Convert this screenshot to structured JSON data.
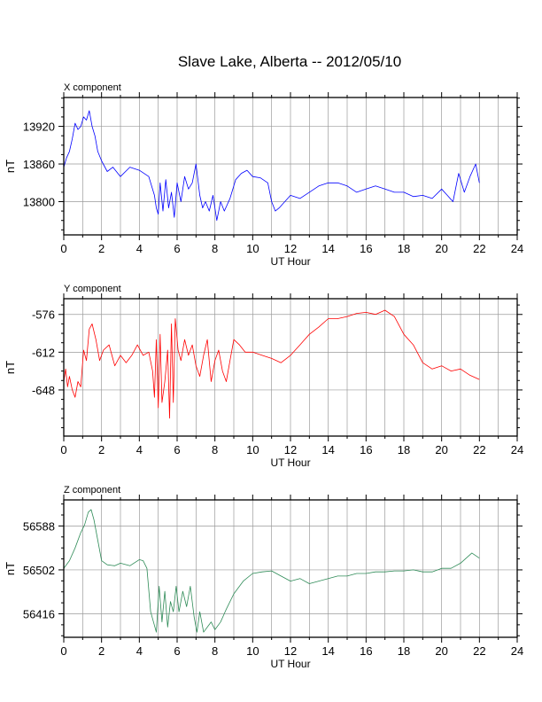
{
  "page": {
    "title": "Slave Lake, Alberta -- 2012/05/10"
  },
  "chart_data": [
    {
      "type": "line",
      "panel_title": "X component",
      "ylabel": "nT",
      "xlabel": "UT Hour",
      "xlim": [
        0,
        24
      ],
      "ylim": [
        13747,
        13966
      ],
      "x_ticks": [
        0,
        2,
        4,
        6,
        8,
        10,
        12,
        14,
        16,
        18,
        20,
        22,
        24
      ],
      "y_ticks": [
        13800,
        13860,
        13920
      ],
      "grid": true,
      "color": "#0000ff",
      "series": [
        {
          "x": [
            0,
            0.15,
            0.3,
            0.45,
            0.6,
            0.75,
            0.9,
            1.05,
            1.2,
            1.35,
            1.5,
            1.65,
            1.8,
            2.0,
            2.3,
            2.6,
            3.0,
            3.5,
            4.0,
            4.5,
            4.8,
            4.9,
            5.0,
            5.1,
            5.25,
            5.4,
            5.55,
            5.7,
            5.85,
            6.0,
            6.2,
            6.4,
            6.6,
            6.8,
            7.0,
            7.2,
            7.35,
            7.5,
            7.7,
            7.9,
            8.1,
            8.3,
            8.5,
            8.8,
            9.1,
            9.4,
            9.7,
            10.0,
            10.4,
            10.8,
            11.0,
            11.2,
            11.4,
            11.7,
            12.0,
            12.5,
            13.0,
            13.5,
            14.0,
            14.5,
            15.0,
            15.5,
            16.0,
            16.5,
            17.0,
            17.5,
            18.0,
            18.5,
            19.0,
            19.5,
            20.0,
            20.3,
            20.6,
            20.9,
            21.2,
            21.5,
            21.8,
            22.0
          ],
          "values": [
            13855,
            13870,
            13880,
            13900,
            13925,
            13915,
            13920,
            13935,
            13930,
            13945,
            13920,
            13905,
            13880,
            13865,
            13848,
            13855,
            13840,
            13855,
            13850,
            13840,
            13810,
            13790,
            13780,
            13830,
            13785,
            13835,
            13790,
            13815,
            13775,
            13830,
            13800,
            13840,
            13820,
            13830,
            13860,
            13810,
            13790,
            13800,
            13785,
            13810,
            13770,
            13800,
            13785,
            13805,
            13835,
            13845,
            13850,
            13840,
            13838,
            13830,
            13800,
            13785,
            13790,
            13800,
            13810,
            13805,
            13815,
            13825,
            13830,
            13830,
            13825,
            13815,
            13820,
            13825,
            13820,
            13815,
            13815,
            13808,
            13810,
            13805,
            13820,
            13810,
            13800,
            13845,
            13815,
            13840,
            13860,
            13830
          ]
        }
      ]
    },
    {
      "type": "line",
      "panel_title": "Y component",
      "ylabel": "nT",
      "xlabel": "UT Hour",
      "xlim": [
        0,
        24
      ],
      "ylim": [
        -692,
        -561
      ],
      "x_ticks": [
        0,
        2,
        4,
        6,
        8,
        10,
        12,
        14,
        16,
        18,
        20,
        22,
        24
      ],
      "y_ticks": [
        -648,
        -612,
        -576
      ],
      "grid": true,
      "color": "#ff0000",
      "series": [
        {
          "x": [
            0,
            0.1,
            0.2,
            0.3,
            0.45,
            0.6,
            0.75,
            0.9,
            1.05,
            1.2,
            1.35,
            1.5,
            1.7,
            1.9,
            2.1,
            2.4,
            2.7,
            3.0,
            3.3,
            3.6,
            3.9,
            4.2,
            4.5,
            4.7,
            4.8,
            4.9,
            5.0,
            5.1,
            5.2,
            5.35,
            5.5,
            5.6,
            5.7,
            5.8,
            5.9,
            6.05,
            6.2,
            6.4,
            6.6,
            6.8,
            7.0,
            7.2,
            7.4,
            7.6,
            7.8,
            8.0,
            8.2,
            8.4,
            8.6,
            8.8,
            9.0,
            9.3,
            9.6,
            10.0,
            10.5,
            11.0,
            11.5,
            12.0,
            12.5,
            13.0,
            13.5,
            14.0,
            14.5,
            15.0,
            15.5,
            16.0,
            16.5,
            17.0,
            17.5,
            18.0,
            18.5,
            19.0,
            19.5,
            20.0,
            20.5,
            21.0,
            21.5,
            22.0
          ],
          "values": [
            -640,
            -628,
            -645,
            -635,
            -648,
            -655,
            -640,
            -645,
            -610,
            -620,
            -590,
            -585,
            -600,
            -620,
            -610,
            -605,
            -625,
            -615,
            -622,
            -615,
            -605,
            -615,
            -612,
            -630,
            -655,
            -600,
            -665,
            -595,
            -660,
            -640,
            -610,
            -675,
            -585,
            -660,
            -580,
            -610,
            -620,
            -600,
            -615,
            -605,
            -625,
            -635,
            -615,
            -600,
            -640,
            -620,
            -610,
            -630,
            -640,
            -620,
            -600,
            -605,
            -612,
            -612,
            -615,
            -618,
            -622,
            -615,
            -605,
            -595,
            -588,
            -580,
            -580,
            -578,
            -575,
            -574,
            -576,
            -572,
            -578,
            -595,
            -605,
            -622,
            -628,
            -625,
            -630,
            -628,
            -634,
            -638
          ]
        }
      ]
    },
    {
      "type": "line",
      "panel_title": "Z component",
      "ylabel": "nT",
      "xlabel": "UT Hour",
      "xlim": [
        0,
        24
      ],
      "ylim": [
        56370,
        56639
      ],
      "x_ticks": [
        0,
        2,
        4,
        6,
        8,
        10,
        12,
        14,
        16,
        18,
        20,
        22,
        24
      ],
      "y_ticks": [
        56416,
        56502,
        56588
      ],
      "grid": true,
      "color": "#2e8b57",
      "series": [
        {
          "x": [
            0,
            0.3,
            0.6,
            0.9,
            1.1,
            1.3,
            1.45,
            1.6,
            1.8,
            2.0,
            2.3,
            2.7,
            3.0,
            3.5,
            4.0,
            4.2,
            4.4,
            4.6,
            4.75,
            4.9,
            5.05,
            5.2,
            5.35,
            5.5,
            5.65,
            5.8,
            5.95,
            6.1,
            6.3,
            6.5,
            6.7,
            6.9,
            7.05,
            7.2,
            7.4,
            7.6,
            7.8,
            8.0,
            8.3,
            8.6,
            9.0,
            9.5,
            10.0,
            10.5,
            11.0,
            11.5,
            12.0,
            12.5,
            13.0,
            13.5,
            14.0,
            14.5,
            15.0,
            15.5,
            16.0,
            16.5,
            17.0,
            17.5,
            18.0,
            18.5,
            19.0,
            19.5,
            20.0,
            20.5,
            21.0,
            21.3,
            21.6,
            22.0
          ],
          "values": [
            56505,
            56520,
            56545,
            56575,
            56590,
            56615,
            56620,
            56600,
            56560,
            56520,
            56512,
            56510,
            56515,
            56510,
            56522,
            56520,
            56505,
            56420,
            56400,
            56380,
            56470,
            56400,
            56460,
            56390,
            56440,
            56420,
            56470,
            56420,
            56460,
            56430,
            56470,
            56410,
            56380,
            56420,
            56380,
            56390,
            56400,
            56385,
            56400,
            56425,
            56455,
            56480,
            56495,
            56498,
            56500,
            56490,
            56480,
            56485,
            56475,
            56480,
            56485,
            56490,
            56490,
            56495,
            56495,
            56498,
            56498,
            56500,
            56500,
            56502,
            56498,
            56498,
            56505,
            56505,
            56515,
            56525,
            56535,
            56525
          ]
        }
      ]
    }
  ]
}
